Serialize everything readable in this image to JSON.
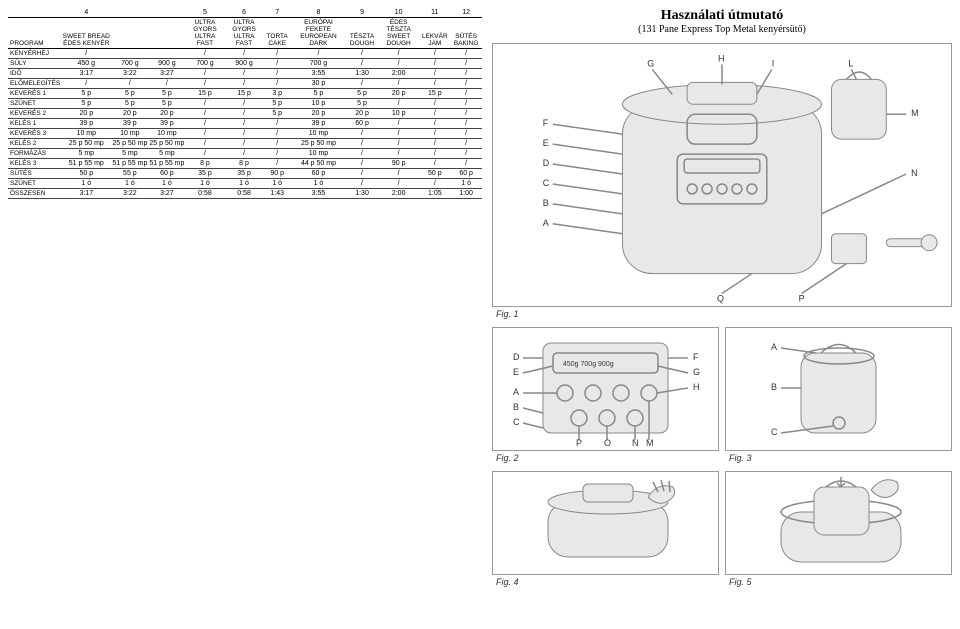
{
  "title": "Használati útmutató",
  "subtitle": "(131 Pane Express Top Metal kenyérsütő)",
  "headers": {
    "nums": [
      "",
      "4",
      "5",
      "6",
      "7",
      "8",
      "9",
      "10",
      "11",
      "12"
    ],
    "labels": [
      "PROGRAM",
      "SWEET BREAD ÉDES KENYÉR",
      "ULTRA GYORS ULTRA FAST",
      "ULTRA GYORS ULTRA FAST",
      "TORTA CAKE",
      "EURÓPAI FEKETE EUROPEAN DARK",
      "TÉSZTA DOUGH",
      "ÉDES TÉSZTA SWEET DOUGH",
      "LEKVÁR JAM",
      "SÜTÉS BAKING"
    ]
  },
  "rows": [
    [
      "KENYÉRHÉJ",
      "/",
      "/",
      "/",
      "/",
      "/",
      "/",
      "/",
      "/",
      "/"
    ],
    [
      "SÚLY",
      "450 g",
      "700 g",
      "900 g",
      "700 g",
      "900 g",
      "/",
      "700 g",
      "/",
      "/",
      "/",
      "/"
    ],
    [
      "IDŐ",
      "3:17",
      "3:22",
      "3:27",
      "/",
      "/",
      "/",
      "3:55",
      "1:30",
      "2:00",
      "/",
      "/"
    ],
    [
      "ELŐMELEGÍTÉS",
      "/",
      "/",
      "/",
      "/",
      "/",
      "/",
      "30 p",
      "/",
      "/",
      "/",
      "/"
    ],
    [
      "KEVERÉS 1",
      "5 p",
      "5 p",
      "5 p",
      "15 p",
      "15 p",
      "3 p",
      "5 p",
      "5 p",
      "20 p",
      "15 p",
      "/"
    ],
    [
      "SZÜNET",
      "5 p",
      "5 p",
      "5 p",
      "/",
      "/",
      "5 p",
      "10 p",
      "5 p",
      "/",
      "/",
      "/"
    ],
    [
      "KEVERÉS 2",
      "20 p",
      "20 p",
      "20 p",
      "/",
      "/",
      "5 p",
      "20 p",
      "20 p",
      "10 p",
      "/",
      "/"
    ],
    [
      "KELÉS 1",
      "39 p",
      "39 p",
      "39 p",
      "/",
      "/",
      "/",
      "39 p",
      "60 p",
      "/",
      "/",
      "/"
    ],
    [
      "KEVERÉS 3",
      "10 mp",
      "10 mp",
      "10 mp",
      "/",
      "/",
      "/",
      "10 mp",
      "/",
      "/",
      "/",
      "/"
    ],
    [
      "KELÉS 2",
      "25 p 50 mp",
      "25 p 50 mp",
      "25 p 50 mp",
      "/",
      "/",
      "/",
      "25 p 50 mp",
      "/",
      "/",
      "/",
      "/"
    ],
    [
      "FORMÁZÁS",
      "5 mp",
      "5 mp",
      "5 mp",
      "/",
      "/",
      "/",
      "10 mp",
      "/",
      "/",
      "/",
      "/"
    ],
    [
      "KELÉS 3",
      "51 p 55 mp",
      "51 p 55 mp",
      "51 p 55 mp",
      "8 p",
      "8 p",
      "/",
      "44 p 50 mp",
      "/",
      "90 p",
      "/",
      "/"
    ],
    [
      "SÜTÉS",
      "50 p",
      "55 p",
      "60 p",
      "35 p",
      "35 p",
      "90 p",
      "60 p",
      "/",
      "/",
      "50 p",
      "60 p"
    ],
    [
      "SZÜNET",
      "1 ó",
      "1 ó",
      "1 ó",
      "1 ó",
      "1 ó",
      "1 ó",
      "1 ó",
      "/",
      "/",
      "/",
      "1 ó"
    ],
    [
      "ÖSSZESEN",
      "3:17",
      "3:22",
      "3:27",
      "0:58",
      "0:58",
      "1:43",
      "3:55",
      "1:30",
      "2:00",
      "1:05",
      "1:00"
    ]
  ],
  "figs": {
    "f1": "Fig. 1",
    "f2": "Fig. 2",
    "f3": "Fig. 3",
    "f4": "Fig. 4",
    "f5": "Fig. 5"
  },
  "labels_fig1": [
    "G",
    "H",
    "I",
    "L",
    "F",
    "E",
    "D",
    "C",
    "B",
    "A",
    "M",
    "N",
    "Q",
    "P"
  ],
  "labels_fig2": [
    "D",
    "E",
    "A",
    "B",
    "C",
    "F",
    "G",
    "H",
    "P",
    "O",
    "N",
    "M",
    "450g 700g 900g"
  ],
  "labels_fig3": [
    "A",
    "B",
    "C"
  ]
}
